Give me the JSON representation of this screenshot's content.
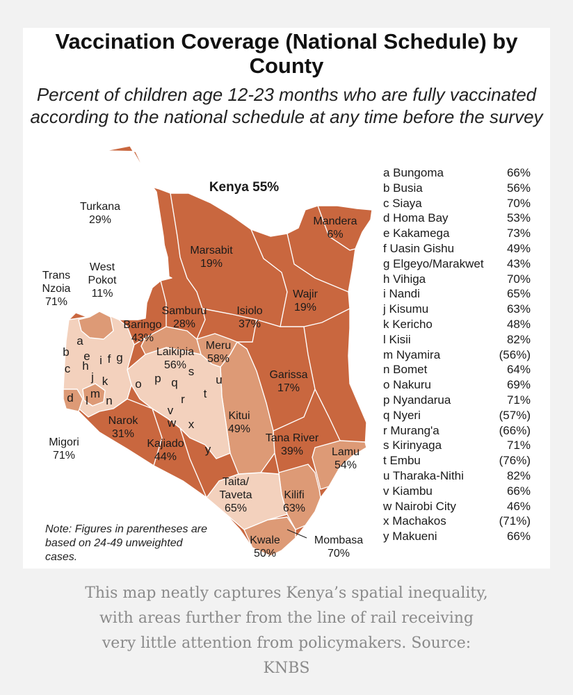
{
  "title": "Vaccination Coverage (National Schedule) by County",
  "subtitle": "Percent of children age 12-23 months who are fully vaccinated according to the national schedule at any time before the survey",
  "national_label": "Kenya 55%",
  "colors": {
    "dark": "#c9673f",
    "medium": "#dd9a76",
    "light": "#f3d1bd",
    "border": "#ffffff"
  },
  "map_labels": [
    {
      "name": "Turkana",
      "value": "29%"
    },
    {
      "name": "West Pokot",
      "value": "11%"
    },
    {
      "name": "Trans Nzoia",
      "value": "71%"
    },
    {
      "name": "Marsabit",
      "value": "19%"
    },
    {
      "name": "Mandera",
      "value": "6%"
    },
    {
      "name": "Wajir",
      "value": "19%"
    },
    {
      "name": "Samburu",
      "value": "28%"
    },
    {
      "name": "Baringo",
      "value": "43%"
    },
    {
      "name": "Isiolo",
      "value": "37%"
    },
    {
      "name": "Laikipia",
      "value": "56%"
    },
    {
      "name": "Meru",
      "value": "58%"
    },
    {
      "name": "Garissa",
      "value": "17%"
    },
    {
      "name": "Kitui",
      "value": "49%"
    },
    {
      "name": "Tana River",
      "value": "39%"
    },
    {
      "name": "Lamu",
      "value": "54%"
    },
    {
      "name": "Narok",
      "value": "31%"
    },
    {
      "name": "Kajiado",
      "value": "44%"
    },
    {
      "name": "Migori",
      "value": "71%"
    },
    {
      "name": "Taita/ Taveta",
      "value": "65%"
    },
    {
      "name": "Kilifi",
      "value": "63%"
    },
    {
      "name": "Kwale",
      "value": "50%"
    },
    {
      "name": "Mombasa",
      "value": "70%"
    }
  ],
  "letter_labels": [
    "a",
    "b",
    "c",
    "d",
    "e",
    "f",
    "g",
    "h",
    "i",
    "j",
    "k",
    "l",
    "m",
    "n",
    "o",
    "p",
    "q",
    "r",
    "s",
    "t",
    "u",
    "v",
    "w",
    "x",
    "y"
  ],
  "legend": [
    {
      "key": "a Bungoma",
      "value": "66%"
    },
    {
      "key": "b Busia",
      "value": "56%"
    },
    {
      "key": "c Siaya",
      "value": "70%"
    },
    {
      "key": "d Homa Bay",
      "value": "53%"
    },
    {
      "key": "e Kakamega",
      "value": "73%"
    },
    {
      "key": "f Uasin Gishu",
      "value": "49%"
    },
    {
      "key": "g Elgeyo/Marakwet",
      "value": "43%"
    },
    {
      "key": "h Vihiga",
      "value": "70%"
    },
    {
      "key": "i Nandi",
      "value": "65%"
    },
    {
      "key": "j Kisumu",
      "value": "63%"
    },
    {
      "key": "k Kericho",
      "value": "48%"
    },
    {
      "key": "l Kisii",
      "value": "82%"
    },
    {
      "key": "m Nyamira",
      "value": "(56%)"
    },
    {
      "key": "n Bomet",
      "value": "64%"
    },
    {
      "key": "o Nakuru",
      "value": "69%"
    },
    {
      "key": "p Nyandarua",
      "value": "71%"
    },
    {
      "key": "q Nyeri",
      "value": "(57%)"
    },
    {
      "key": "r Murang'a",
      "value": "(66%)"
    },
    {
      "key": "s Kirinyaga",
      "value": "71%"
    },
    {
      "key": "t Embu",
      "value": "(76%)"
    },
    {
      "key": "u Tharaka-Nithi",
      "value": "82%"
    },
    {
      "key": "v Kiambu",
      "value": "66%"
    },
    {
      "key": "w Nairobi City",
      "value": "46%"
    },
    {
      "key": "x Machakos",
      "value": "(71%)"
    },
    {
      "key": "y Makueni",
      "value": "66%"
    }
  ],
  "note": "Note: Figures in parentheses are based on 24-49 unweighted cases.",
  "caption": "This map neatly captures Kenya’s spatial inequality, with areas further from the line of rail receiving very little attention from policymakers. Source: KNBS"
}
